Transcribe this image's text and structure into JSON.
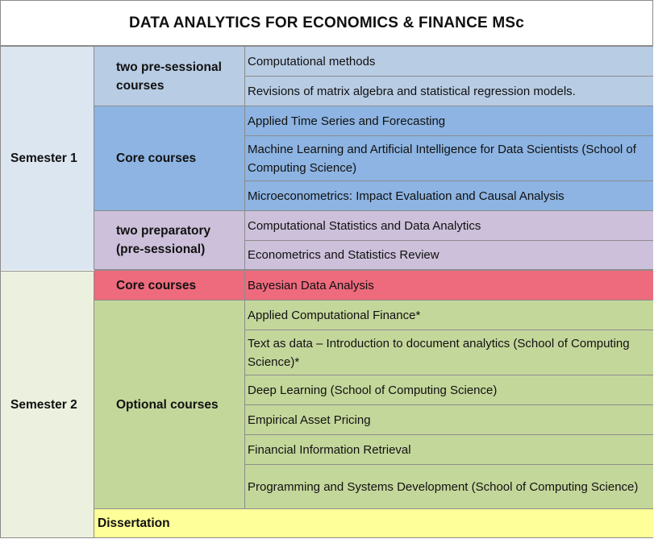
{
  "title": "DATA ANALYTICS FOR ECONOMICS & FINANCE MSc",
  "semester1": {
    "label": "Semester 1",
    "groups": [
      {
        "label": "two pre-sessional courses",
        "courses": [
          "Computational methods",
          "Revisions of matrix algebra and statistical regression models."
        ]
      },
      {
        "label": "Core courses",
        "courses": [
          "Applied Time Series and Forecasting",
          "Machine Learning and Artificial Intelligence for Data Scientists (School of Computing Science)",
          "Microeconometrics: Impact Evaluation and Causal Analysis"
        ]
      },
      {
        "label": "two preparatory (pre-sessional)",
        "courses": [
          "Computational Statistics and Data Analytics",
          "Econometrics and Statistics Review"
        ]
      }
    ]
  },
  "semester2": {
    "label": "Semester 2",
    "groups": [
      {
        "label": "Core courses",
        "courses": [
          "Bayesian Data Analysis"
        ]
      },
      {
        "label": "Optional courses",
        "courses": [
          "Applied Computational Finance*",
          "Text as data – Introduction to document analytics (School of Computing Science)*",
          "Deep Learning (School of Computing Science)",
          "Empirical Asset Pricing",
          "Financial Information Retrieval",
          "Programming and Systems Development (School of Computing Science)"
        ]
      }
    ],
    "dissertation": "Dissertation"
  },
  "colors": {
    "semester1_bg": "#dce6f1",
    "semester2_bg": "#ebf1de",
    "pre_sessional_bg": "#b8cce4",
    "core_bg": "#8db4e2",
    "preparatory_bg": "#ccc0da",
    "core_sem2_bg": "#ee6a7d",
    "optional_bg": "#c4d79b",
    "dissertation_bg": "#ffff99"
  }
}
